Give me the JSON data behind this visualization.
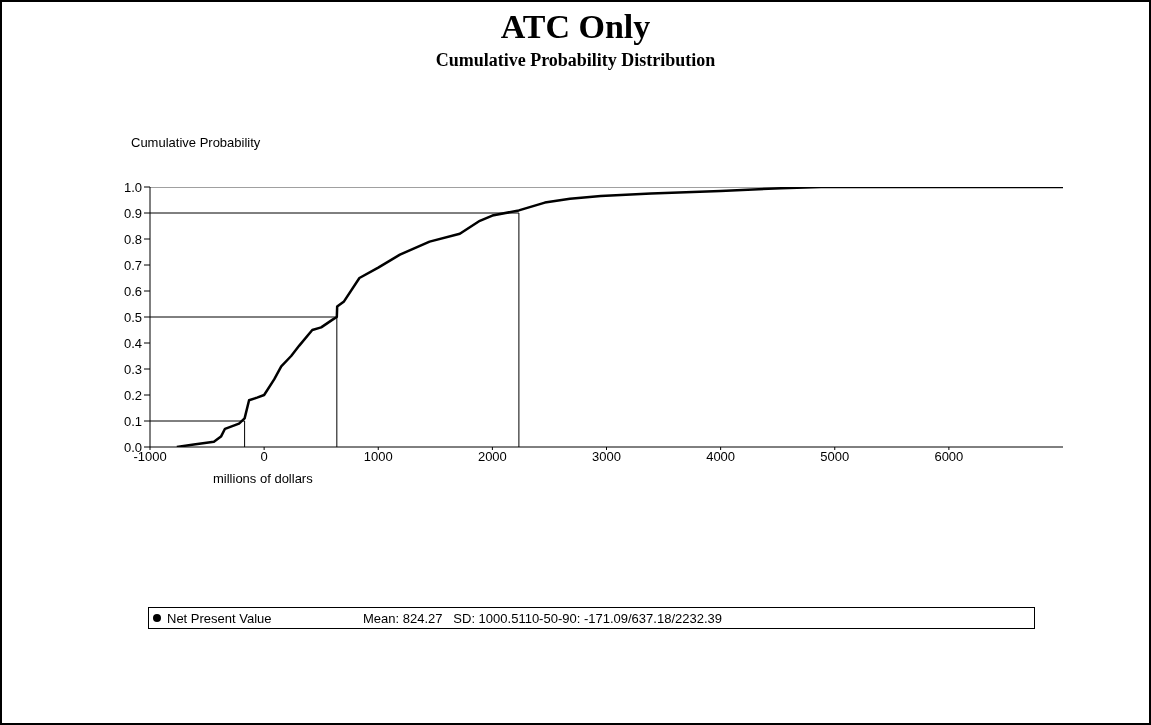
{
  "chart_data": {
    "type": "line",
    "title": "ATC Only",
    "subtitle": "Cumulative Probability Distribution",
    "xlabel": "millions of dollars",
    "ylabel": "Cumulative Probability",
    "x": [
      -765,
      -616,
      -440,
      -378,
      -343,
      -220,
      -171,
      -132,
      -62,
      0,
      88,
      150,
      237,
      308,
      422,
      500,
      600,
      637,
      640,
      700,
      835,
      1000,
      1190,
      1450,
      1715,
      1890,
      2000,
      2232,
      2460,
      2680,
      2950,
      3390,
      4000,
      4530,
      4880,
      7000
    ],
    "series": [
      {
        "name": "Net Present Value",
        "color": "#000000",
        "values": [
          0,
          0.01,
          0.02,
          0.04,
          0.07,
          0.09,
          0.11,
          0.18,
          0.19,
          0.2,
          0.26,
          0.31,
          0.35,
          0.39,
          0.45,
          0.46,
          0.49,
          0.5,
          0.54,
          0.56,
          0.65,
          0.69,
          0.74,
          0.79,
          0.82,
          0.87,
          0.89,
          0.91,
          0.94,
          0.955,
          0.965,
          0.975,
          0.985,
          0.995,
          1,
          1
        ]
      }
    ],
    "xlim": [
      -1000,
      7000
    ],
    "xticks": [
      -1000,
      0,
      1000,
      2000,
      3000,
      4000,
      5000,
      6000
    ],
    "ylim": [
      0,
      1
    ],
    "yticks": [
      {
        "value": 0,
        "label": "0.0"
      },
      {
        "value": 0.1,
        "label": "0.1"
      },
      {
        "value": 0.2,
        "label": "0.2"
      },
      {
        "value": 0.3,
        "label": "0.3"
      },
      {
        "value": 0.4,
        "label": "0.4"
      },
      {
        "value": 0.5,
        "label": "0.5"
      },
      {
        "value": 0.6,
        "label": "0.6"
      },
      {
        "value": 0.7,
        "label": "0.7"
      },
      {
        "value": 0.8,
        "label": "0.8"
      },
      {
        "value": 0.9,
        "label": "0.9"
      },
      {
        "value": 1,
        "label": "1.0"
      }
    ],
    "ref_lines": [
      {
        "axis": "y",
        "value": 0.1,
        "color": "#000000"
      },
      {
        "axis": "y",
        "value": 0.5,
        "color": "#000000"
      },
      {
        "axis": "y",
        "value": 0.9,
        "color": "#000000"
      },
      {
        "axis": "y",
        "value": 1,
        "color": "#a0a0a0"
      },
      {
        "axis": "x",
        "value": -171.09,
        "color": "#000000"
      },
      {
        "axis": "x",
        "value": 637.18,
        "color": "#000000"
      },
      {
        "axis": "x",
        "value": 2232.39,
        "color": "#000000"
      }
    ],
    "annotations": [
      "Mean: 824.27   SD: 1000.5110-50-90: -171.09/637.18/2232.39"
    ],
    "legend": "bottom",
    "grid": false
  }
}
